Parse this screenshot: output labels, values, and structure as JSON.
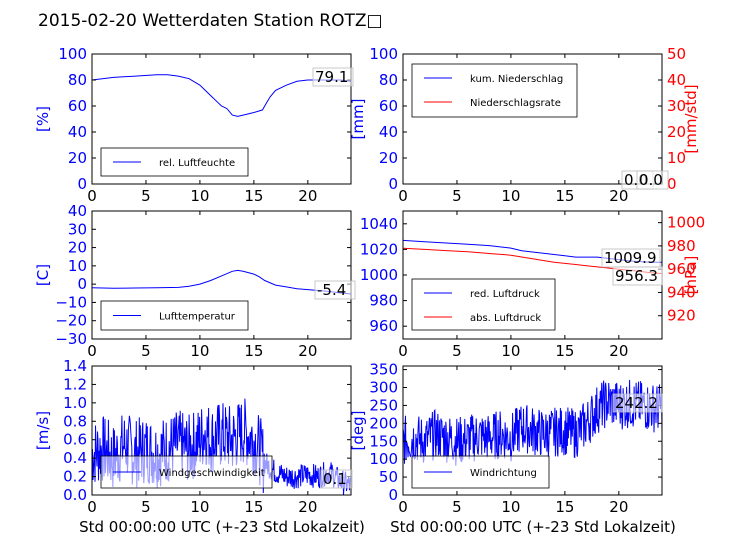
{
  "title": "2015-02-20 Wetterdaten Station ROTZ□",
  "xlabel": "Std 00:00:00 UTC (+-23 Std Lokalzeit)",
  "colors": {
    "primary": "#0000ff",
    "secondary": "#ff0000",
    "text": "#000000"
  },
  "chart_data": [
    {
      "type": "line",
      "ylabel": "[%]",
      "xlim": [
        0,
        24
      ],
      "ylim": [
        0,
        100
      ],
      "xticks": [
        "0",
        "5",
        "10",
        "15",
        "20"
      ],
      "yticks": [
        "0",
        "20",
        "40",
        "60",
        "80",
        "100"
      ],
      "legend_position": "lower-left",
      "series": [
        {
          "name": "rel. Luftfeuchte",
          "x": [
            0,
            2,
            4,
            6,
            7,
            8,
            9,
            10,
            10.5,
            11,
            11.5,
            12,
            12.5,
            13,
            13.5,
            14,
            15,
            15.8,
            16,
            16.5,
            17,
            18,
            19,
            20,
            21,
            22,
            23,
            24
          ],
          "y": [
            80,
            82,
            83,
            84,
            84,
            83,
            81,
            76,
            72,
            68,
            64,
            60,
            58,
            53,
            52,
            53,
            55,
            57,
            60,
            67,
            72,
            76,
            79,
            80,
            80,
            80,
            80,
            79.1
          ]
        }
      ],
      "last_values": [
        "79.1"
      ]
    },
    {
      "type": "line",
      "ylabel": "[mm]",
      "ylabel_right": "[mm/std]",
      "xlim": [
        0,
        24
      ],
      "ylim": [
        0,
        100
      ],
      "ylim_right": [
        0,
        50
      ],
      "xticks": [
        "0",
        "5",
        "10",
        "15",
        "20"
      ],
      "yticks": [
        "0",
        "20",
        "40",
        "60",
        "80",
        "100"
      ],
      "yticks_right": [
        "0",
        "10",
        "20",
        "30",
        "40",
        "50"
      ],
      "legend_position": "top-left",
      "series": [
        {
          "name": "kum. Niederschlag",
          "x": [
            0,
            24
          ],
          "y": [
            0,
            0
          ]
        },
        {
          "name": "Niederschlagsrate",
          "x": [
            0,
            24
          ],
          "y": [
            0,
            0
          ]
        }
      ],
      "last_values": [
        "0.0",
        "0.0"
      ]
    },
    {
      "type": "line",
      "ylabel": "[C]",
      "xlim": [
        0,
        24
      ],
      "ylim": [
        -30,
        40
      ],
      "xticks": [
        "0",
        "5",
        "10",
        "15",
        "20"
      ],
      "yticks": [
        "−30",
        "−20",
        "−10",
        "0",
        "10",
        "20",
        "30",
        "40"
      ],
      "legend_position": "lower-left",
      "series": [
        {
          "name": "Lufttemperatur",
          "x": [
            0,
            2,
            4,
            6,
            8,
            9,
            10,
            11,
            12,
            13,
            13.5,
            14,
            15,
            15.5,
            16,
            17,
            18,
            19,
            20,
            21,
            22,
            23,
            24
          ],
          "y": [
            -2,
            -2.2,
            -2.1,
            -2,
            -1.8,
            -1.2,
            0,
            2,
            4.5,
            7,
            7.5,
            7,
            5.5,
            4,
            2,
            -0.5,
            -1.5,
            -2.5,
            -3,
            -3.5,
            -4,
            -4.8,
            -5.4
          ]
        }
      ],
      "last_values": [
        "-5.4"
      ]
    },
    {
      "type": "line",
      "ylabel": "",
      "ylabel_right": "[hPa]",
      "xlim": [
        0,
        24
      ],
      "ylim": [
        950,
        1050
      ],
      "ylim_right": [
        900,
        1010
      ],
      "xticks": [
        "0",
        "5",
        "10",
        "15",
        "20"
      ],
      "yticks": [
        "960",
        "980",
        "1000",
        "1020",
        "1040"
      ],
      "yticks_right": [
        "920",
        "940",
        "960",
        "980",
        "1000"
      ],
      "legend_position": "lower-left",
      "series": [
        {
          "name": "red. Luftdruck",
          "x": [
            0,
            2,
            4,
            6,
            8,
            10,
            11,
            12,
            13,
            14,
            15,
            16,
            17,
            18,
            19,
            20,
            21,
            22,
            23,
            24
          ],
          "y": [
            1027,
            1026,
            1025,
            1024,
            1023,
            1021,
            1019,
            1018,
            1017,
            1016,
            1015,
            1014,
            1014,
            1014,
            1013,
            1012,
            1011,
            1010.5,
            1010,
            1009.9
          ]
        },
        {
          "name": "abs. Luftdruck",
          "x": [
            0,
            2,
            4,
            6,
            8,
            10,
            11,
            12,
            13,
            14,
            15,
            16,
            17,
            18,
            19,
            20,
            21,
            22,
            23,
            24
          ],
          "y": [
            978,
            977,
            976,
            975,
            973.5,
            972,
            970.5,
            969,
            967.5,
            966,
            965,
            964,
            963,
            962,
            961,
            960,
            959,
            958,
            957,
            956.3
          ]
        }
      ],
      "last_values": [
        "1009.9",
        "956.3"
      ]
    },
    {
      "type": "line",
      "ylabel": "[m/s]",
      "xlim": [
        0,
        24
      ],
      "ylim": [
        0,
        1.4
      ],
      "xticks": [
        "0",
        "5",
        "10",
        "15",
        "20"
      ],
      "yticks": [
        "0.0",
        "0.2",
        "0.4",
        "0.6",
        "0.8",
        "1.0",
        "1.2",
        "1.4"
      ],
      "legend_position": "lower-left",
      "series": [
        {
          "name": "Windgeschwindigkeit",
          "x": [
            0,
            1,
            2,
            3,
            4,
            5,
            6,
            7,
            8,
            9,
            10,
            10.5,
            11,
            12,
            13,
            14,
            15,
            15.5,
            16,
            17,
            18,
            19,
            20,
            21,
            22,
            23,
            24
          ],
          "y": [
            0.45,
            0.5,
            0.4,
            0.55,
            0.45,
            0.5,
            0.45,
            0.5,
            0.55,
            0.5,
            0.6,
            0.7,
            0.6,
            0.65,
            0.6,
            0.7,
            0.6,
            0.5,
            0.35,
            0.25,
            0.2,
            0.2,
            0.22,
            0.2,
            0.25,
            0.15,
            0.1
          ]
        }
      ],
      "last_values": [
        "0.1"
      ]
    },
    {
      "type": "line",
      "ylabel": "[deg]",
      "xlim": [
        0,
        24
      ],
      "ylim": [
        0,
        360
      ],
      "xticks": [
        "0",
        "5",
        "10",
        "15",
        "20"
      ],
      "yticks": [
        "0",
        "50",
        "100",
        "150",
        "200",
        "250",
        "300",
        "350"
      ],
      "legend_position": "lower-left",
      "series": [
        {
          "name": "Windrichtung",
          "x": [
            0,
            1,
            2,
            3,
            4,
            5,
            6,
            7,
            8,
            9,
            10,
            11,
            12,
            13,
            14,
            15,
            16,
            17,
            18,
            19,
            20,
            21,
            22,
            23,
            24
          ],
          "y": [
            150,
            160,
            150,
            170,
            160,
            150,
            155,
            165,
            160,
            170,
            160,
            190,
            180,
            170,
            175,
            180,
            170,
            200,
            240,
            260,
            250,
            255,
            250,
            245,
            242.2
          ]
        }
      ],
      "last_values": [
        "242.2"
      ]
    }
  ]
}
